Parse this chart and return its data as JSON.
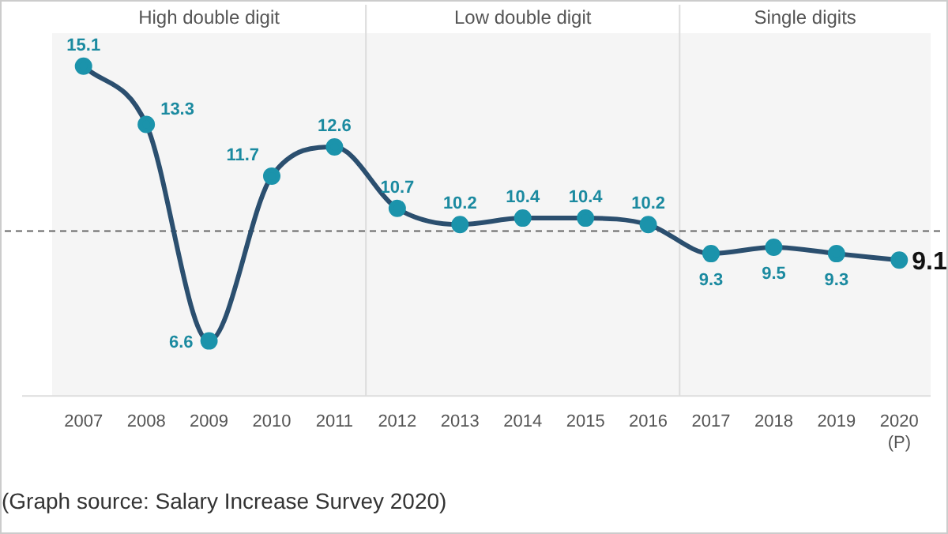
{
  "chart_data": {
    "type": "line",
    "categories": [
      "2007",
      "2008",
      "2009",
      "2010",
      "2011",
      "2012",
      "2013",
      "2014",
      "2015",
      "2016",
      "2017",
      "2018",
      "2019",
      "2020 (P)"
    ],
    "series": [
      {
        "color": "#2b4f6f",
        "values": [
          15.1,
          13.3,
          6.6,
          11.7,
          12.6,
          10.7,
          10.2,
          10.4,
          10.4,
          10.2,
          9.3,
          9.5,
          9.3,
          9.1
        ]
      }
    ],
    "data_labels": true,
    "marker": "circle",
    "legend": false,
    "tick_labels": "x",
    "ref_lines": [
      {
        "axis": "y",
        "value": 10,
        "line_style": "dashed",
        "color": "#666666"
      }
    ],
    "bands": [
      {
        "axis": "x",
        "from": "2007",
        "to": "2011",
        "label": "High double digit",
        "color": "#f5f5f5"
      },
      {
        "axis": "x",
        "from": "2012",
        "to": "2016",
        "label": "Low double digit",
        "color": "#f5f5f5"
      },
      {
        "axis": "x",
        "from": "2017",
        "to": "2020 (P)",
        "label": "Single digits",
        "color": "#f5f5f5"
      }
    ],
    "annotations": [
      "(Graph source: Salary Increase Survey 2020)"
    ]
  }
}
